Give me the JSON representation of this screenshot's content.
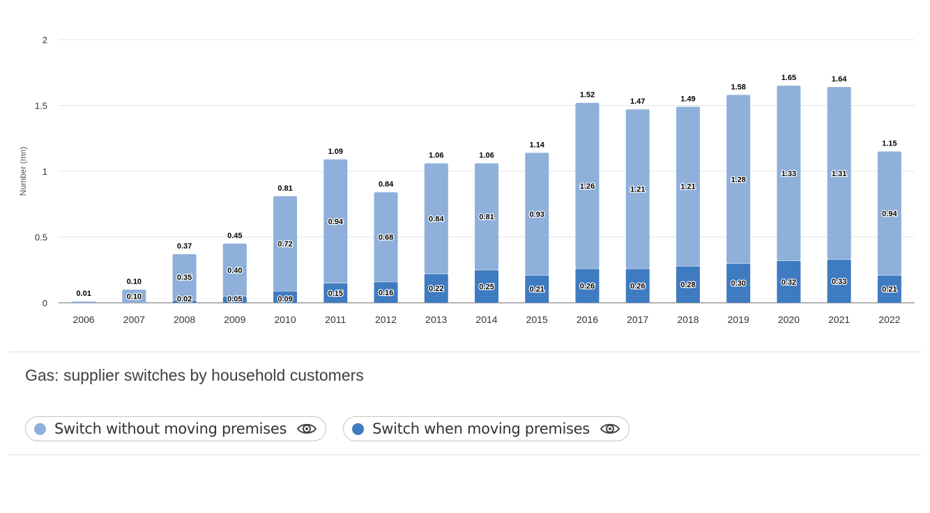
{
  "title": "Gas: supplier switches by household customers",
  "legend": [
    {
      "label": "Switch without moving premises",
      "color": "#8eb0da",
      "icon": "eye-icon"
    },
    {
      "label": "Switch when moving premises",
      "color": "#3f7bc1",
      "icon": "eye-icon"
    }
  ],
  "chart_data": {
    "type": "bar",
    "stacked": true,
    "ylabel": "Number (mn)",
    "xlabel": "",
    "ylim": [
      0,
      2
    ],
    "yticks": [
      "0",
      "0.5",
      "1",
      "1.5",
      "2"
    ],
    "ytick_values": [
      0,
      0.5,
      1,
      1.5,
      2
    ],
    "grid": true,
    "categories": [
      "2006",
      "2007",
      "2008",
      "2009",
      "2010",
      "2011",
      "2012",
      "2013",
      "2014",
      "2015",
      "2016",
      "2017",
      "2018",
      "2019",
      "2020",
      "2021",
      "2022"
    ],
    "series": [
      {
        "name": "Switch when moving premises",
        "color": "#3f7bc1",
        "values": [
          null,
          null,
          0.02,
          0.05,
          0.09,
          0.15,
          0.16,
          0.22,
          0.25,
          0.21,
          0.26,
          0.26,
          0.28,
          0.3,
          0.32,
          0.33,
          0.21
        ],
        "labels": [
          "",
          "",
          "0.02",
          "0.05",
          "0.09",
          "0.15",
          "0.16",
          "0.22",
          "0.25",
          "0.21",
          "0.26",
          "0.26",
          "0.28",
          "0.30",
          "0.32",
          "0.33",
          "0.21"
        ]
      },
      {
        "name": "Switch without moving premises",
        "color": "#8eb0da",
        "values": [
          0.01,
          0.1,
          0.35,
          0.4,
          0.72,
          0.94,
          0.68,
          0.84,
          0.81,
          0.93,
          1.26,
          1.21,
          1.21,
          1.28,
          1.33,
          1.31,
          0.94
        ],
        "labels": [
          "",
          "0.10",
          "0.35",
          "0.40",
          "0.72",
          "0.94",
          "0.68",
          "0.84",
          "0.81",
          "0.93",
          "1.26",
          "1.21",
          "1.21",
          "1.28",
          "1.33",
          "1.31",
          "0.94"
        ]
      }
    ],
    "totals": [
      0.01,
      0.1,
      0.37,
      0.45,
      0.81,
      1.09,
      0.84,
      1.06,
      1.06,
      1.14,
      1.52,
      1.47,
      1.49,
      1.58,
      1.65,
      1.64,
      1.15
    ],
    "total_labels": [
      "0.01",
      "0.10",
      "0.37",
      "0.45",
      "0.81",
      "1.09",
      "0.84",
      "1.06",
      "1.06",
      "1.14",
      "1.52",
      "1.47",
      "1.49",
      "1.58",
      "1.65",
      "1.64",
      "1.15"
    ]
  }
}
